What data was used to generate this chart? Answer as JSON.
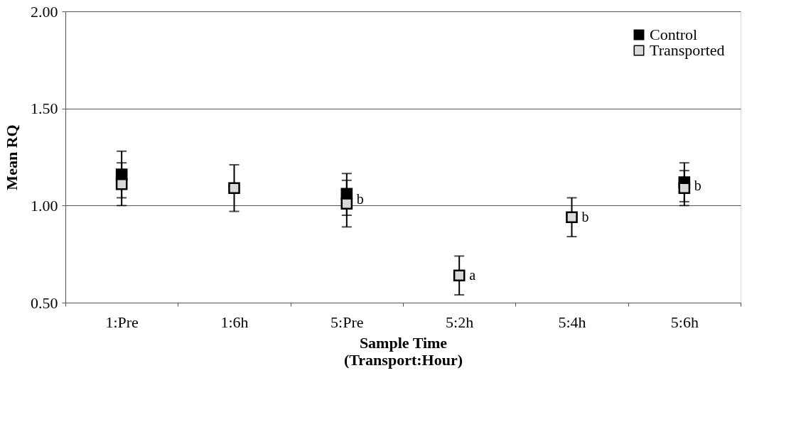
{
  "chart_data": {
    "type": "scatter",
    "xlabel": "Sample Time\n(Transport:Hour)",
    "ylabel": "Mean RQ",
    "categories": [
      "1:Pre",
      "1:6h",
      "5:Pre",
      "5:2h",
      "5:4h",
      "5:6h"
    ],
    "series": [
      {
        "name": "Control",
        "color": "#000000",
        "values": [
          1.16,
          null,
          1.06,
          null,
          null,
          1.12
        ],
        "errors": [
          [
            1.04,
            1.22
          ],
          null,
          [
            0.95,
            1.13
          ],
          null,
          null,
          [
            1.02,
            1.18
          ]
        ]
      },
      {
        "name": "Transported",
        "color": "#d9d9d9",
        "values": [
          1.11,
          1.09,
          1.01,
          0.64,
          0.94,
          1.09
        ],
        "errors": [
          [
            1.0,
            1.28
          ],
          [
            0.97,
            1.21
          ],
          [
            0.89,
            1.165
          ],
          [
            0.54,
            0.74
          ],
          [
            0.84,
            1.04
          ],
          [
            1.0,
            1.22
          ]
        ]
      }
    ],
    "ylim": [
      0.5,
      2.0
    ],
    "yticks": [
      {
        "value": 0.5,
        "label": "0.50"
      },
      {
        "value": 1.0,
        "label": "1.00"
      },
      {
        "value": 1.5,
        "label": "1.50"
      },
      {
        "value": 2.0,
        "label": "2.00"
      }
    ],
    "annotations": [
      {
        "text": "b",
        "x": "5:Pre",
        "y": 1.03
      },
      {
        "text": "a",
        "x": "5:2h",
        "y": 0.64
      },
      {
        "text": "b",
        "x": "5:4h",
        "y": 0.94
      },
      {
        "text": "b",
        "x": "5:6h",
        "y": 1.1
      }
    ],
    "grid": "y",
    "legend": "top right",
    "marker": "square"
  }
}
